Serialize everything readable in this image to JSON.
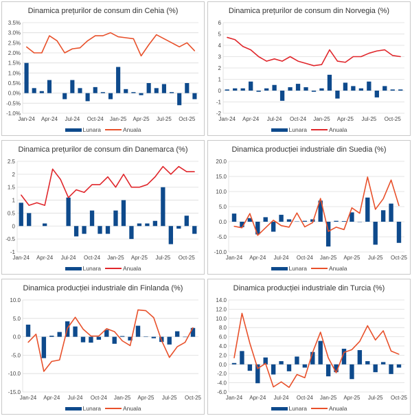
{
  "legend": {
    "bar": "Lunara",
    "line": "Anuala"
  },
  "colors": {
    "bar": "#0e4a8c",
    "line_orange": "#e8502a",
    "line_red": "#e0262b",
    "grid": "#dcdcdc"
  },
  "chart_data": [
    {
      "type": "bar+line",
      "title": "Dinamica prețurilor de consum din Cehia (%)",
      "x": [
        "Jan-24",
        "Feb-24",
        "Mar-24",
        "Apr-24",
        "May-24",
        "Jun-24",
        "Jul-24",
        "Aug-24",
        "Sep-24",
        "Oct-24",
        "Nov-24",
        "Dec-24",
        "Jan-25",
        "Feb-25",
        "Mar-25",
        "Apr-25",
        "May-25",
        "Jun-25",
        "Jul-25",
        "Aug-25",
        "Sep-25",
        "Oct-25",
        "Nov-25"
      ],
      "x_tick_labels": [
        "Jan-24",
        "Apr-24",
        "Jul-24",
        "Oct-24",
        "Jan-25",
        "Apr-25",
        "Jul-25",
        "Oct-25"
      ],
      "y_tick_labels": [
        "3.5%",
        "3.0%",
        "2.5%",
        "2.0%",
        "1.5%",
        "1.0%",
        "0.5%",
        "0.0%",
        "-0.5%",
        "-1.0%"
      ],
      "ylim": [
        -1,
        3.5
      ],
      "ystep": 0.5,
      "x_axis_mode": "between",
      "line_color": "#e8502a",
      "series": [
        {
          "name": "Lunara",
          "kind": "bar",
          "values": [
            1.5,
            0.25,
            0.1,
            0.65,
            0,
            -0.3,
            0.65,
            0.25,
            -0.4,
            0.3,
            0.05,
            -0.3,
            1.3,
            0.2,
            0.05,
            -0.1,
            0.5,
            0.25,
            0.45,
            0.05,
            -0.6,
            0.5,
            -0.3
          ]
        },
        {
          "name": "Anuala",
          "kind": "line",
          "values": [
            2.3,
            2.0,
            2.0,
            2.85,
            2.6,
            2.0,
            2.2,
            2.25,
            2.6,
            2.85,
            2.85,
            3.0,
            2.8,
            2.75,
            2.7,
            1.85,
            2.4,
            2.9,
            2.7,
            2.5,
            2.3,
            2.5,
            2.1
          ]
        }
      ]
    },
    {
      "type": "bar+line",
      "title": "Dinamica prețurilor de consum din Norvegia (%)",
      "x": [
        "Jan-24",
        "Feb-24",
        "Mar-24",
        "Apr-24",
        "May-24",
        "Jun-24",
        "Jul-24",
        "Aug-24",
        "Sep-24",
        "Oct-24",
        "Nov-24",
        "Dec-24",
        "Jan-25",
        "Feb-25",
        "Mar-25",
        "Apr-25",
        "May-25",
        "Jun-25",
        "Jul-25",
        "Aug-25",
        "Sep-25",
        "Oct-25",
        "Nov-25"
      ],
      "x_tick_labels": [
        "Jan-24",
        "Apr-24",
        "Jul-24",
        "Oct-24",
        "Jan-25",
        "Apr-25",
        "Jul-25",
        "Oct-25"
      ],
      "y_tick_labels": [
        "6",
        "5",
        "4",
        "3",
        "2",
        "1",
        "0",
        "-1",
        "-2"
      ],
      "ylim": [
        -2,
        6
      ],
      "ystep": 1,
      "x_axis_mode": "between",
      "line_color": "#e0262b",
      "series": [
        {
          "name": "Lunara",
          "kind": "bar",
          "values": [
            0.1,
            0.2,
            0.2,
            0.8,
            -0.1,
            0.2,
            0.5,
            -0.9,
            0.3,
            0.6,
            0.3,
            -0.1,
            0.2,
            1.4,
            -0.7,
            0.7,
            0.4,
            0.2,
            0.8,
            -0.6,
            0.4,
            0.1,
            0.1
          ]
        },
        {
          "name": "Anuala",
          "kind": "line",
          "values": [
            4.7,
            4.5,
            3.9,
            3.6,
            3.0,
            2.6,
            2.8,
            2.6,
            3.0,
            2.6,
            2.4,
            2.2,
            2.3,
            3.6,
            2.6,
            2.5,
            3.0,
            3.0,
            3.3,
            3.5,
            3.6,
            3.1,
            3.0
          ]
        }
      ]
    },
    {
      "type": "bar+line",
      "title": "Dinamica prețurilor de consum din Danemarca (%)",
      "x": [
        "Jan-24",
        "Feb-24",
        "Mar-24",
        "Apr-24",
        "May-24",
        "Jun-24",
        "Jul-24",
        "Aug-24",
        "Sep-24",
        "Oct-24",
        "Nov-24",
        "Dec-24",
        "Jan-25",
        "Feb-25",
        "Mar-25",
        "Apr-25",
        "May-25",
        "Jun-25",
        "Jul-25",
        "Aug-25",
        "Sep-25",
        "Oct-25",
        "Nov-25"
      ],
      "x_tick_labels": [
        "Jan-24",
        "Apr-24",
        "Jul-24",
        "Oct-24",
        "Jan-25",
        "Apr-25",
        "Jul-25",
        "Oct-25"
      ],
      "y_tick_labels": [
        "2.5",
        "2",
        "1.5",
        "1",
        "0.5",
        "0",
        "-0.5",
        "-1"
      ],
      "ylim": [
        -1,
        2.5
      ],
      "ystep": 0.5,
      "x_axis_mode": "between",
      "line_color": "#e0262b",
      "series": [
        {
          "name": "Lunara",
          "kind": "bar",
          "values": [
            0.9,
            0.5,
            0,
            0.1,
            0,
            0,
            1.1,
            -0.4,
            -0.3,
            0.6,
            -0.3,
            -0.3,
            0.6,
            1.0,
            -0.5,
            0.1,
            0.1,
            0.2,
            1.5,
            -0.7,
            -0.1,
            0.4,
            -0.3
          ]
        },
        {
          "name": "Anuala",
          "kind": "line",
          "values": [
            1.2,
            0.8,
            0.9,
            0.8,
            2.2,
            1.8,
            1.1,
            1.4,
            1.3,
            1.6,
            1.6,
            1.9,
            1.5,
            2.0,
            1.5,
            1.5,
            1.6,
            1.9,
            2.3,
            2.0,
            2.3,
            2.1,
            2.1
          ]
        }
      ]
    },
    {
      "type": "bar+line",
      "title": "Dinamica producției industriale din Suedia (%)",
      "x": [
        "Jan-24",
        "Feb-24",
        "Mar-24",
        "Apr-24",
        "May-24",
        "Jun-24",
        "Jul-24",
        "Aug-24",
        "Sep-24",
        "Oct-24",
        "Nov-24",
        "Dec-24",
        "Jan-25",
        "Feb-25",
        "Mar-25",
        "Apr-25",
        "May-25",
        "Jun-25",
        "Jul-25",
        "Aug-25",
        "Sep-25",
        "Oct-25"
      ],
      "x_tick_labels": [
        "Jan-24",
        "Apr-24",
        "Jul-24",
        "Oct-24",
        "Jan-25",
        "Apr-25",
        "Jul-25",
        "Oct-25"
      ],
      "y_tick_labels": [
        "20.0",
        "15.0",
        "10.0",
        "5.0",
        "0.0",
        "-5.0",
        "-10.0"
      ],
      "ylim": [
        -10,
        20
      ],
      "ystep": 5,
      "x_axis_mode": "edge",
      "line_color": "#e8502a",
      "series": [
        {
          "name": "Lunara",
          "kind": "bar",
          "values": [
            2.7,
            -1.8,
            1.2,
            -4.2,
            1.5,
            -3.3,
            2.3,
            0.8,
            0.1,
            0.3,
            0.8,
            7.0,
            -8.2,
            0.3,
            0.2,
            3.1,
            -0.1,
            8.0,
            -7.6,
            3.8,
            6.0,
            -7.0
          ]
        },
        {
          "name": "Anuala",
          "kind": "line",
          "values": [
            -1.5,
            -2.0,
            2.7,
            -4.5,
            -2.0,
            0.5,
            -1.3,
            -1.8,
            2.9,
            -1.7,
            -0.3,
            7.7,
            -3.2,
            -1.8,
            -2.6,
            4.6,
            2.8,
            14.8,
            4.1,
            7.6,
            13.8,
            5.3
          ]
        }
      ]
    },
    {
      "type": "bar+line",
      "title": "Dinamica producției industriale din Finlanda (%)",
      "x": [
        "Jan-24",
        "Feb-24",
        "Mar-24",
        "Apr-24",
        "May-24",
        "Jun-24",
        "Jul-24",
        "Aug-24",
        "Sep-24",
        "Oct-24",
        "Nov-24",
        "Dec-24",
        "Jan-25",
        "Feb-25",
        "Mar-25",
        "Apr-25",
        "May-25",
        "Jun-25",
        "Jul-25",
        "Aug-25",
        "Sep-25",
        "Oct-25"
      ],
      "x_tick_labels": [
        "Jan-24",
        "Apr-24",
        "Jul-24",
        "Oct-24",
        "Jan-25",
        "Apr-25",
        "Jul-25",
        "Oct-25"
      ],
      "y_tick_labels": [
        "10.0",
        "5.0",
        "0.0",
        "-5.0",
        "-10.0",
        "-15.0"
      ],
      "ylim": [
        -15,
        10
      ],
      "ystep": 5,
      "x_axis_mode": "edge",
      "line_color": "#e8502a",
      "series": [
        {
          "name": "Lunara",
          "kind": "bar",
          "values": [
            3.3,
            0,
            -5.8,
            0.3,
            1.3,
            4.2,
            2.8,
            -1.5,
            -1.6,
            -0.8,
            1.9,
            -1.9,
            0.2,
            -1.0,
            3.0,
            0.1,
            -0.4,
            -1.4,
            -2.1,
            1.5,
            -0.1,
            2.4
          ]
        },
        {
          "name": "Anuala",
          "kind": "line",
          "values": [
            -1.5,
            0.7,
            -9.4,
            -6.7,
            -6.3,
            2.3,
            5.3,
            2.1,
            0.2,
            0.2,
            2.2,
            1.4,
            -1.1,
            -2.4,
            7.3,
            7.1,
            5.2,
            -1.0,
            -5.6,
            -2.7,
            -1.5,
            2.5
          ]
        }
      ]
    },
    {
      "type": "bar+line",
      "title": "Dinamica producției industriale din Turcia (%)",
      "x": [
        "Jan-24",
        "Feb-24",
        "Mar-24",
        "Apr-24",
        "May-24",
        "Jun-24",
        "Jul-24",
        "Aug-24",
        "Sep-24",
        "Oct-24",
        "Nov-24",
        "Dec-24",
        "Jan-25",
        "Feb-25",
        "Mar-25",
        "Apr-25",
        "May-25",
        "Jun-25",
        "Jul-25",
        "Aug-25",
        "Sep-25",
        "Oct-25"
      ],
      "x_tick_labels": [
        "Jan-24",
        "Apr-24",
        "Jul-24",
        "Oct-24",
        "Jan-25",
        "Apr-25",
        "Jul-25",
        "Oct-25"
      ],
      "y_tick_labels": [
        "14.0",
        "12.0",
        "10.0",
        "8.0",
        "6.0",
        "4.0",
        "2.0",
        "0.0",
        "-2.0",
        "-4.0",
        "-6.0"
      ],
      "ylim": [
        -6,
        14
      ],
      "ystep": 2,
      "x_axis_mode": "edge",
      "line_color": "#e8502a",
      "series": [
        {
          "name": "Lunara",
          "kind": "bar",
          "values": [
            0.3,
            2.9,
            -1.4,
            -4.1,
            1.5,
            -2.2,
            0.7,
            -1.5,
            1.7,
            -0.7,
            2.7,
            5.1,
            -2.6,
            -1.7,
            3.4,
            -3.2,
            3.1,
            0.7,
            -1.7,
            0.5,
            -2.1,
            -0.7
          ]
        },
        {
          "name": "Anuala",
          "kind": "line",
          "values": [
            1.4,
            11.1,
            4.6,
            -0.9,
            0.2,
            -4.9,
            -3.8,
            -5.0,
            -2.2,
            -2.9,
            2.6,
            7.0,
            1.4,
            -1.8,
            2.6,
            3.2,
            5.0,
            8.4,
            5.3,
            7.3,
            2.9,
            2.2
          ]
        }
      ]
    }
  ]
}
